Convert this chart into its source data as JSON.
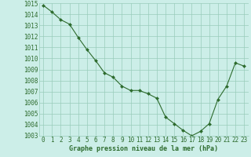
{
  "x": [
    0,
    1,
    2,
    3,
    4,
    5,
    6,
    7,
    8,
    9,
    10,
    11,
    12,
    13,
    14,
    15,
    16,
    17,
    18,
    19,
    20,
    21,
    22,
    23
  ],
  "y": [
    1014.8,
    1014.2,
    1013.5,
    1013.1,
    1011.9,
    1010.8,
    1009.8,
    1008.7,
    1008.3,
    1007.5,
    1007.1,
    1007.1,
    1006.8,
    1006.4,
    1004.7,
    1004.1,
    1003.5,
    1003.0,
    1003.4,
    1004.1,
    1006.3,
    1007.5,
    1009.6,
    1009.3
  ],
  "ylim": [
    1003,
    1015
  ],
  "yticks": [
    1003,
    1004,
    1005,
    1006,
    1007,
    1008,
    1009,
    1010,
    1011,
    1012,
    1013,
    1014,
    1015
  ],
  "xticks": [
    0,
    1,
    2,
    3,
    4,
    5,
    6,
    7,
    8,
    9,
    10,
    11,
    12,
    13,
    14,
    15,
    16,
    17,
    18,
    19,
    20,
    21,
    22,
    23
  ],
  "line_color": "#2d6b2d",
  "marker_color": "#2d6b2d",
  "bg_color": "#cceee8",
  "plot_bg": "#cceee8",
  "label_bg": "#e8e8d8",
  "grid_color": "#99ccbb",
  "xlabel": "Graphe pression niveau de la mer (hPa)",
  "xlabel_color": "#2d6b2d",
  "tick_color": "#2d6b2d",
  "tick_fontsize": 5.5,
  "xlabel_fontsize": 6.0
}
